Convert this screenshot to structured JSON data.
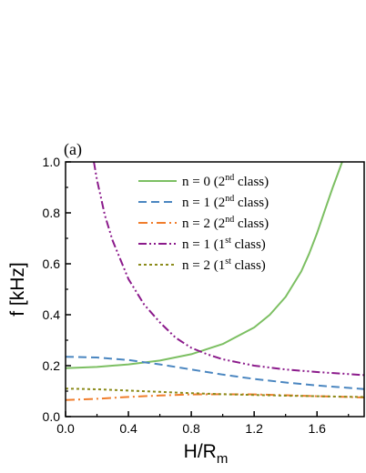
{
  "chart_data": {
    "type": "line",
    "panel_label": "(a)",
    "title": "",
    "xlabel": "H/R",
    "xlabel_sub": "m",
    "ylabel": "f [kHz]",
    "xlim": [
      0,
      1.9
    ],
    "ylim": [
      0,
      1.0
    ],
    "xticks": [
      "0.0",
      "0.4",
      "0.8",
      "1.2",
      "1.6"
    ],
    "yticks": [
      "0.0",
      "0.2",
      "0.4",
      "0.6",
      "0.8",
      "1.0"
    ],
    "legend_position": "top-right",
    "series": [
      {
        "name": "n = 0 (2nd class)",
        "legend": {
          "pre": "n = 0 (2",
          "sup": "nd",
          "post": " class)"
        },
        "color": "#7cbf62",
        "dash": "solid",
        "x": [
          0.0,
          0.2,
          0.4,
          0.6,
          0.8,
          1.0,
          1.2,
          1.3,
          1.4,
          1.5,
          1.55,
          1.6,
          1.65,
          1.7,
          1.73,
          1.76
        ],
        "y": [
          0.19,
          0.195,
          0.205,
          0.22,
          0.245,
          0.285,
          0.35,
          0.4,
          0.47,
          0.57,
          0.64,
          0.72,
          0.81,
          0.9,
          0.95,
          1.0
        ]
      },
      {
        "name": "n = 1 (2nd class)",
        "legend": {
          "pre": "n = 1 (2",
          "sup": "nd",
          "post": " class)"
        },
        "color": "#4a86c0",
        "dash": "dashed",
        "x": [
          0.0,
          0.2,
          0.4,
          0.6,
          0.8,
          1.0,
          1.2,
          1.4,
          1.6,
          1.8,
          1.9
        ],
        "y": [
          0.235,
          0.232,
          0.222,
          0.205,
          0.185,
          0.165,
          0.148,
          0.134,
          0.122,
          0.113,
          0.108
        ]
      },
      {
        "name": "n = 2 (2nd class)",
        "legend": {
          "pre": "n = 2 (2",
          "sup": "nd",
          "post": " class)"
        },
        "color": "#f07d2c",
        "dash": "dashdot",
        "x": [
          0.0,
          0.2,
          0.4,
          0.6,
          0.8,
          1.0,
          1.2,
          1.4,
          1.6,
          1.8,
          1.9
        ],
        "y": [
          0.065,
          0.07,
          0.077,
          0.083,
          0.087,
          0.088,
          0.087,
          0.084,
          0.08,
          0.077,
          0.075
        ]
      },
      {
        "name": "n = 1 (1st class)",
        "legend": {
          "pre": "n = 1 (1",
          "sup": "st",
          "post": " class)"
        },
        "color": "#8b1a8b",
        "dash": "dashdotdot",
        "x": [
          0.18,
          0.2,
          0.25,
          0.3,
          0.4,
          0.5,
          0.6,
          0.7,
          0.8,
          0.9,
          1.0,
          1.2,
          1.4,
          1.6,
          1.8,
          1.9
        ],
        "y": [
          1.0,
          0.93,
          0.79,
          0.69,
          0.54,
          0.44,
          0.37,
          0.31,
          0.27,
          0.245,
          0.225,
          0.2,
          0.185,
          0.175,
          0.167,
          0.163
        ]
      },
      {
        "name": "n = 2 (1st class)",
        "legend": {
          "pre": "n = 2 (1",
          "sup": "st",
          "post": " class)"
        },
        "color": "#8b8b1a",
        "dash": "dotted",
        "x": [
          0.0,
          0.2,
          0.4,
          0.6,
          0.8,
          1.0,
          1.2,
          1.4,
          1.6,
          1.8,
          1.9
        ],
        "y": [
          0.11,
          0.107,
          0.102,
          0.097,
          0.092,
          0.088,
          0.085,
          0.082,
          0.08,
          0.078,
          0.077
        ]
      }
    ]
  }
}
